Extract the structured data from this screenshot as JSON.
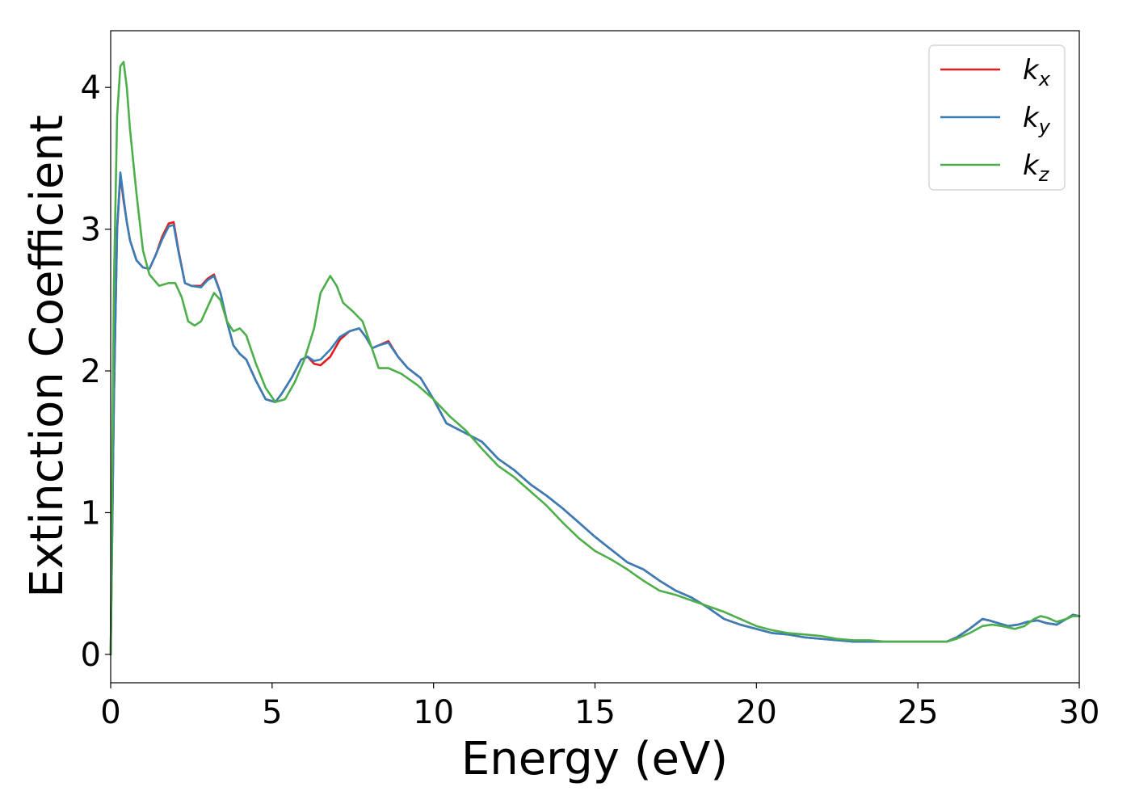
{
  "chart_data": {
    "type": "line",
    "title": "",
    "xlabel": "Energy (eV)",
    "ylabel": "Extinction Coefficient",
    "xlim": [
      0,
      30
    ],
    "ylim": [
      -0.2,
      4.4
    ],
    "x_ticks": [
      0,
      5,
      10,
      15,
      20,
      25,
      30
    ],
    "x_tick_labels": [
      "0",
      "5",
      "10",
      "15",
      "20",
      "25",
      "30"
    ],
    "y_ticks": [
      0,
      1,
      2,
      3,
      4
    ],
    "y_tick_labels": [
      "0",
      "1",
      "2",
      "3",
      "4"
    ],
    "grid": false,
    "legend_position": "top-right",
    "series": [
      {
        "name": "k_x",
        "label_main": "k",
        "label_sub": "x",
        "color": "#e41a1c",
        "x": [
          0,
          0.1,
          0.2,
          0.3,
          0.4,
          0.5,
          0.6,
          0.8,
          1.0,
          1.2,
          1.4,
          1.6,
          1.8,
          1.95,
          2.1,
          2.3,
          2.5,
          2.8,
          3.0,
          3.2,
          3.4,
          3.6,
          3.8,
          4.0,
          4.2,
          4.5,
          4.8,
          5.1,
          5.3,
          5.6,
          5.9,
          6.1,
          6.3,
          6.5,
          6.8,
          7.1,
          7.4,
          7.7,
          7.9,
          8.1,
          8.3,
          8.6,
          8.9,
          9.2,
          9.6,
          10.0,
          10.4,
          11.0,
          11.5,
          12.0,
          12.5,
          13.0,
          13.5,
          14.0,
          14.5,
          15.0,
          15.5,
          16.0,
          16.5,
          17.0,
          17.5,
          18.0,
          18.5,
          19.0,
          19.5,
          20.0,
          20.5,
          21.0,
          21.5,
          22.0,
          22.5,
          23.0,
          23.5,
          24.0,
          24.5,
          25.0,
          25.5,
          25.9,
          26.2,
          26.6,
          27.0,
          27.2,
          27.5,
          27.8,
          28.1,
          28.4,
          28.7,
          29.0,
          29.3,
          29.6,
          29.8,
          30.0
        ],
        "y": [
          0,
          1.8,
          3.0,
          3.38,
          3.2,
          3.05,
          2.92,
          2.78,
          2.73,
          2.72,
          2.82,
          2.95,
          3.04,
          3.05,
          2.85,
          2.62,
          2.6,
          2.6,
          2.65,
          2.68,
          2.55,
          2.35,
          2.18,
          2.12,
          2.08,
          1.93,
          1.8,
          1.78,
          1.84,
          1.95,
          2.08,
          2.1,
          2.05,
          2.04,
          2.1,
          2.22,
          2.28,
          2.3,
          2.24,
          2.16,
          2.18,
          2.21,
          2.1,
          2.02,
          1.95,
          1.8,
          1.63,
          1.56,
          1.5,
          1.38,
          1.3,
          1.2,
          1.12,
          1.03,
          0.93,
          0.83,
          0.74,
          0.65,
          0.6,
          0.52,
          0.45,
          0.4,
          0.33,
          0.25,
          0.21,
          0.18,
          0.15,
          0.14,
          0.12,
          0.11,
          0.1,
          0.09,
          0.09,
          0.09,
          0.09,
          0.09,
          0.09,
          0.09,
          0.12,
          0.18,
          0.25,
          0.24,
          0.22,
          0.2,
          0.21,
          0.23,
          0.24,
          0.22,
          0.21,
          0.25,
          0.28,
          0.27
        ]
      },
      {
        "name": "k_y",
        "label_main": "k",
        "label_sub": "y",
        "color": "#377eb8",
        "x": [
          0,
          0.1,
          0.2,
          0.3,
          0.4,
          0.5,
          0.6,
          0.8,
          1.0,
          1.2,
          1.4,
          1.6,
          1.8,
          1.95,
          2.1,
          2.3,
          2.5,
          2.8,
          3.0,
          3.2,
          3.4,
          3.6,
          3.8,
          4.0,
          4.2,
          4.5,
          4.8,
          5.1,
          5.3,
          5.6,
          5.9,
          6.1,
          6.3,
          6.5,
          6.8,
          7.1,
          7.4,
          7.7,
          7.9,
          8.1,
          8.3,
          8.6,
          8.9,
          9.2,
          9.6,
          10.0,
          10.4,
          11.0,
          11.5,
          12.0,
          12.5,
          13.0,
          13.5,
          14.0,
          14.5,
          15.0,
          15.5,
          16.0,
          16.5,
          17.0,
          17.5,
          18.0,
          18.5,
          19.0,
          19.5,
          20.0,
          20.5,
          21.0,
          21.5,
          22.0,
          22.5,
          23.0,
          23.5,
          24.0,
          24.5,
          25.0,
          25.5,
          25.9,
          26.2,
          26.6,
          27.0,
          27.2,
          27.5,
          27.8,
          28.1,
          28.4,
          28.7,
          29.0,
          29.3,
          29.6,
          29.8,
          30.0
        ],
        "y": [
          0,
          1.8,
          3.0,
          3.4,
          3.22,
          3.05,
          2.92,
          2.78,
          2.73,
          2.72,
          2.82,
          2.93,
          3.02,
          3.03,
          2.84,
          2.62,
          2.6,
          2.59,
          2.64,
          2.67,
          2.55,
          2.35,
          2.18,
          2.12,
          2.08,
          1.93,
          1.8,
          1.78,
          1.84,
          1.95,
          2.08,
          2.1,
          2.07,
          2.08,
          2.15,
          2.24,
          2.28,
          2.3,
          2.24,
          2.16,
          2.18,
          2.2,
          2.1,
          2.02,
          1.95,
          1.8,
          1.63,
          1.56,
          1.5,
          1.38,
          1.3,
          1.2,
          1.12,
          1.03,
          0.93,
          0.83,
          0.74,
          0.65,
          0.6,
          0.52,
          0.45,
          0.4,
          0.33,
          0.25,
          0.21,
          0.18,
          0.15,
          0.14,
          0.12,
          0.11,
          0.1,
          0.09,
          0.09,
          0.09,
          0.09,
          0.09,
          0.09,
          0.09,
          0.12,
          0.18,
          0.25,
          0.24,
          0.22,
          0.2,
          0.21,
          0.23,
          0.24,
          0.22,
          0.21,
          0.25,
          0.28,
          0.27
        ]
      },
      {
        "name": "k_z",
        "label_main": "k",
        "label_sub": "z",
        "color": "#4daf4a",
        "x": [
          0,
          0.1,
          0.2,
          0.3,
          0.4,
          0.5,
          0.6,
          0.8,
          1.0,
          1.2,
          1.5,
          1.8,
          2.0,
          2.2,
          2.4,
          2.6,
          2.8,
          3.0,
          3.2,
          3.4,
          3.6,
          3.8,
          4.0,
          4.2,
          4.5,
          4.8,
          5.1,
          5.4,
          5.7,
          6.0,
          6.3,
          6.5,
          6.8,
          7.0,
          7.2,
          7.5,
          7.8,
          8.0,
          8.3,
          8.6,
          9.0,
          9.5,
          10.0,
          10.5,
          11.0,
          11.5,
          12.0,
          12.5,
          13.0,
          13.5,
          14.0,
          14.5,
          15.0,
          15.5,
          16.0,
          16.5,
          17.0,
          17.5,
          18.0,
          18.5,
          19.0,
          19.5,
          20.0,
          20.5,
          21.0,
          21.5,
          22.0,
          22.5,
          23.0,
          23.5,
          24.0,
          24.5,
          25.0,
          25.5,
          25.9,
          26.2,
          26.6,
          27.0,
          27.3,
          27.6,
          28.0,
          28.3,
          28.6,
          28.8,
          29.0,
          29.3,
          29.6,
          29.8,
          30.0
        ],
        "y": [
          0,
          2.6,
          3.8,
          4.15,
          4.18,
          4.0,
          3.7,
          3.25,
          2.85,
          2.68,
          2.6,
          2.62,
          2.62,
          2.52,
          2.35,
          2.32,
          2.35,
          2.45,
          2.55,
          2.5,
          2.35,
          2.28,
          2.3,
          2.25,
          2.05,
          1.88,
          1.78,
          1.8,
          1.92,
          2.08,
          2.3,
          2.55,
          2.67,
          2.6,
          2.48,
          2.42,
          2.35,
          2.22,
          2.02,
          2.02,
          1.98,
          1.9,
          1.8,
          1.68,
          1.58,
          1.45,
          1.33,
          1.25,
          1.15,
          1.05,
          0.93,
          0.82,
          0.73,
          0.67,
          0.6,
          0.52,
          0.45,
          0.42,
          0.38,
          0.34,
          0.3,
          0.25,
          0.2,
          0.17,
          0.15,
          0.14,
          0.13,
          0.11,
          0.1,
          0.1,
          0.09,
          0.09,
          0.09,
          0.09,
          0.09,
          0.11,
          0.15,
          0.2,
          0.21,
          0.2,
          0.18,
          0.2,
          0.25,
          0.27,
          0.26,
          0.23,
          0.25,
          0.27,
          0.27
        ]
      }
    ]
  }
}
